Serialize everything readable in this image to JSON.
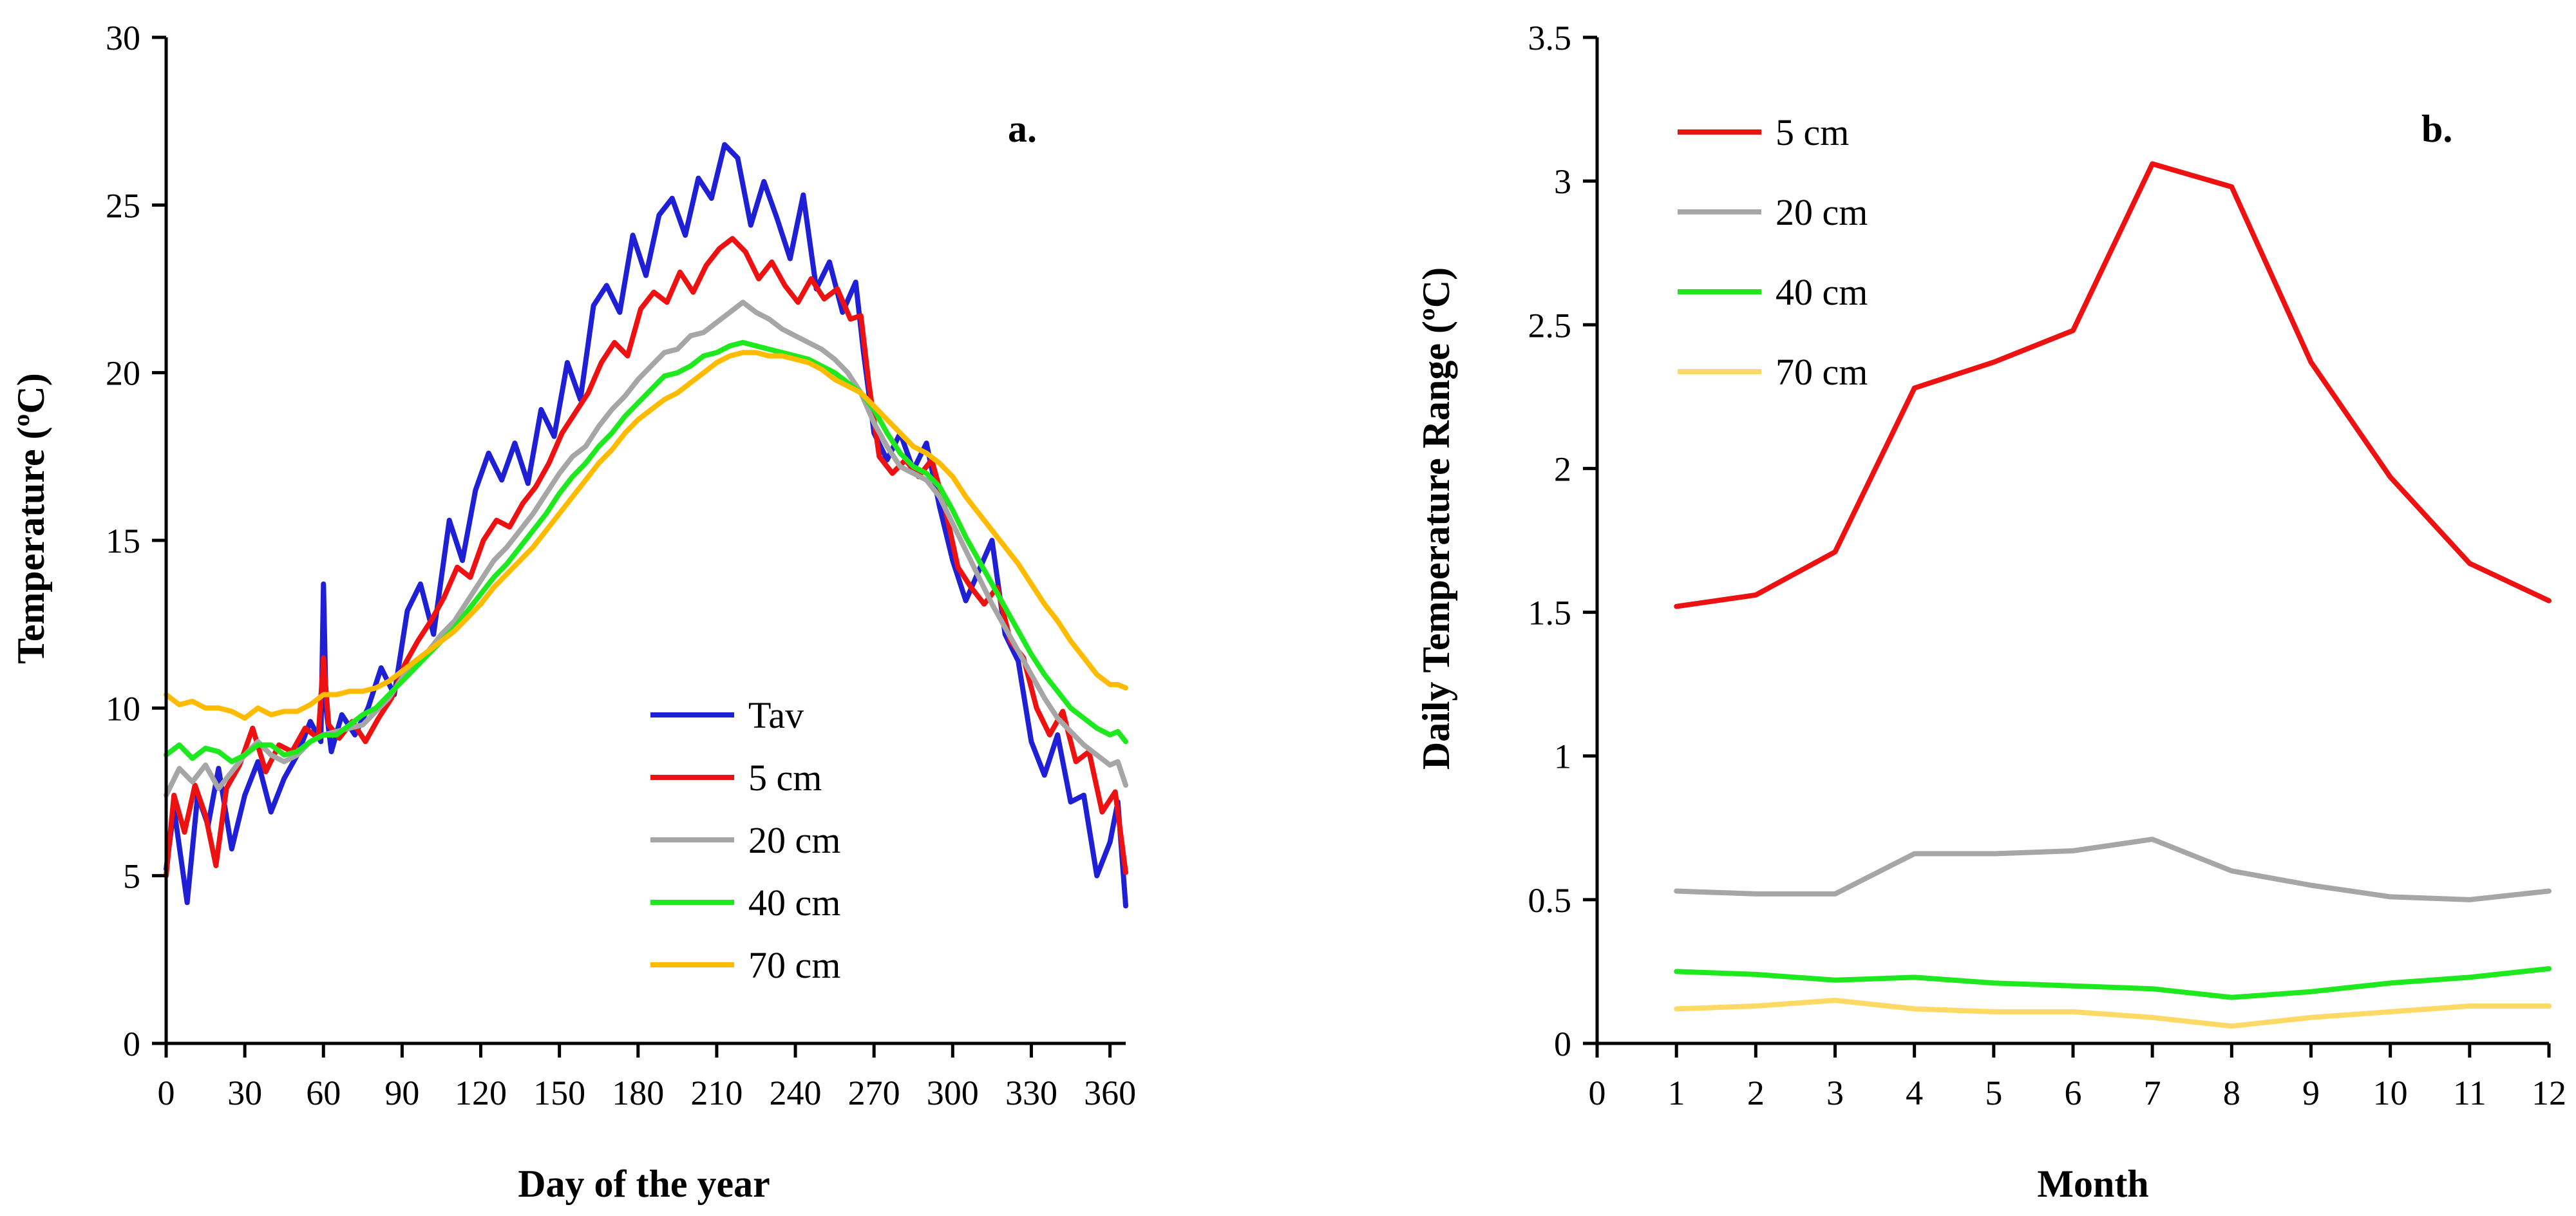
{
  "chart_data": [
    {
      "type": "line",
      "panel_label": "a.",
      "xlabel": "Day of the year",
      "ylabel": "Temperature (ºC)",
      "xlim": [
        0,
        366
      ],
      "ylim": [
        0,
        30
      ],
      "xticks": [
        0,
        30,
        60,
        90,
        120,
        150,
        180,
        210,
        240,
        270,
        300,
        330,
        360
      ],
      "yticks": [
        0,
        5,
        10,
        15,
        20,
        25,
        30
      ],
      "legend_position": "center-right",
      "series": [
        {
          "name": "Tav",
          "color": "#1f1fd6",
          "x": [
            0,
            3,
            8,
            12,
            16,
            20,
            25,
            30,
            35,
            40,
            45,
            50,
            55,
            59,
            60,
            61,
            63,
            67,
            72,
            77,
            82,
            87,
            92,
            97,
            102,
            108,
            113,
            118,
            123,
            128,
            133,
            138,
            143,
            148,
            153,
            158,
            163,
            168,
            173,
            178,
            183,
            188,
            193,
            198,
            203,
            208,
            213,
            218,
            223,
            228,
            233,
            238,
            243,
            248,
            253,
            258,
            263,
            266,
            270,
            275,
            280,
            285,
            290,
            295,
            300,
            305,
            310,
            315,
            320,
            325,
            330,
            335,
            340,
            345,
            350,
            355,
            360,
            363,
            366
          ],
          "y": [
            5.2,
            7.0,
            4.2,
            7.4,
            6.5,
            8.2,
            5.8,
            7.4,
            8.4,
            6.9,
            7.9,
            8.6,
            9.6,
            9.0,
            13.7,
            10.0,
            8.7,
            9.8,
            9.2,
            10.0,
            11.2,
            10.4,
            12.9,
            13.7,
            12.2,
            15.6,
            14.4,
            16.5,
            17.6,
            16.8,
            17.9,
            16.7,
            18.9,
            18.1,
            20.3,
            19.2,
            22.0,
            22.6,
            21.8,
            24.1,
            22.9,
            24.7,
            25.2,
            24.1,
            25.8,
            25.2,
            26.8,
            26.4,
            24.4,
            25.7,
            24.6,
            23.4,
            25.3,
            22.5,
            23.3,
            21.8,
            22.7,
            20.6,
            18.2,
            17.4,
            18.2,
            17.1,
            17.9,
            16.0,
            14.4,
            13.2,
            14.1,
            15.0,
            12.2,
            11.4,
            9.0,
            8.0,
            9.2,
            7.2,
            7.4,
            5.0,
            6.0,
            7.2,
            4.1
          ]
        },
        {
          "name": "5 cm",
          "color": "#ee1111",
          "x": [
            0,
            3,
            7,
            11,
            15,
            19,
            23,
            28,
            33,
            38,
            43,
            48,
            53,
            58,
            60,
            62,
            66,
            71,
            76,
            81,
            86,
            91,
            96,
            101,
            106,
            111,
            116,
            121,
            126,
            131,
            136,
            141,
            146,
            151,
            156,
            161,
            166,
            171,
            176,
            181,
            186,
            191,
            196,
            201,
            206,
            211,
            216,
            221,
            226,
            231,
            236,
            241,
            246,
            251,
            256,
            261,
            265,
            268,
            272,
            277,
            282,
            287,
            292,
            297,
            302,
            307,
            312,
            317,
            322,
            327,
            332,
            337,
            342,
            347,
            352,
            357,
            362,
            366
          ],
          "y": [
            5.0,
            7.4,
            6.3,
            7.7,
            6.8,
            5.3,
            7.6,
            8.3,
            9.4,
            8.1,
            8.9,
            8.7,
            9.4,
            9.1,
            11.5,
            9.5,
            9.1,
            9.6,
            9.0,
            9.7,
            10.3,
            11.3,
            12.0,
            12.6,
            13.3,
            14.2,
            13.9,
            15.0,
            15.6,
            15.4,
            16.1,
            16.6,
            17.3,
            18.2,
            18.8,
            19.4,
            20.3,
            20.9,
            20.5,
            21.9,
            22.4,
            22.1,
            23.0,
            22.4,
            23.2,
            23.7,
            24.0,
            23.6,
            22.8,
            23.3,
            22.6,
            22.1,
            22.8,
            22.2,
            22.5,
            21.6,
            21.7,
            19.7,
            17.5,
            17.0,
            17.4,
            16.9,
            17.4,
            16.0,
            14.2,
            13.6,
            13.1,
            13.6,
            12.0,
            11.5,
            10.0,
            9.2,
            9.9,
            8.4,
            8.7,
            6.9,
            7.5,
            5.1
          ]
        },
        {
          "name": "20 cm",
          "color": "#a6a6a6",
          "x": [
            0,
            5,
            10,
            15,
            20,
            25,
            30,
            35,
            40,
            45,
            50,
            55,
            60,
            65,
            70,
            75,
            80,
            85,
            90,
            95,
            100,
            105,
            110,
            115,
            120,
            125,
            130,
            135,
            140,
            145,
            150,
            155,
            160,
            165,
            170,
            175,
            180,
            185,
            190,
            195,
            200,
            205,
            210,
            215,
            220,
            225,
            230,
            235,
            240,
            245,
            250,
            255,
            260,
            265,
            270,
            275,
            280,
            285,
            290,
            295,
            300,
            305,
            310,
            315,
            320,
            325,
            330,
            335,
            340,
            345,
            350,
            355,
            360,
            363,
            366
          ],
          "y": [
            7.4,
            8.2,
            7.8,
            8.3,
            7.6,
            8.1,
            8.6,
            9.0,
            8.6,
            8.4,
            8.6,
            9.0,
            9.2,
            9.3,
            9.4,
            9.5,
            9.9,
            10.3,
            10.9,
            11.4,
            11.7,
            12.2,
            12.6,
            13.2,
            13.8,
            14.4,
            14.8,
            15.3,
            15.8,
            16.4,
            17.0,
            17.5,
            17.8,
            18.4,
            18.9,
            19.3,
            19.8,
            20.2,
            20.6,
            20.7,
            21.1,
            21.2,
            21.5,
            21.8,
            22.1,
            21.8,
            21.6,
            21.3,
            21.1,
            20.9,
            20.7,
            20.4,
            20.0,
            19.4,
            18.5,
            17.8,
            17.2,
            17.0,
            16.8,
            16.3,
            15.5,
            14.7,
            13.9,
            13.1,
            12.4,
            11.7,
            11.0,
            10.3,
            9.7,
            9.3,
            8.9,
            8.6,
            8.3,
            8.4,
            7.7
          ]
        },
        {
          "name": "40 cm",
          "color": "#1ee81e",
          "x": [
            0,
            5,
            10,
            15,
            20,
            25,
            30,
            35,
            40,
            45,
            50,
            55,
            60,
            65,
            70,
            75,
            80,
            85,
            90,
            95,
            100,
            105,
            110,
            115,
            120,
            125,
            130,
            135,
            140,
            145,
            150,
            155,
            160,
            165,
            170,
            175,
            180,
            185,
            190,
            195,
            200,
            205,
            210,
            215,
            220,
            225,
            230,
            235,
            240,
            245,
            250,
            255,
            260,
            265,
            270,
            275,
            280,
            285,
            290,
            295,
            300,
            305,
            310,
            315,
            320,
            325,
            330,
            335,
            340,
            345,
            350,
            355,
            360,
            363,
            366
          ],
          "y": [
            8.6,
            8.9,
            8.5,
            8.8,
            8.7,
            8.4,
            8.6,
            8.9,
            8.9,
            8.6,
            8.7,
            9.0,
            9.2,
            9.2,
            9.5,
            9.8,
            10.0,
            10.4,
            10.8,
            11.2,
            11.6,
            12.0,
            12.4,
            12.9,
            13.4,
            13.9,
            14.3,
            14.8,
            15.3,
            15.8,
            16.4,
            16.9,
            17.3,
            17.8,
            18.2,
            18.7,
            19.1,
            19.5,
            19.9,
            20.0,
            20.2,
            20.5,
            20.6,
            20.8,
            20.9,
            20.8,
            20.7,
            20.6,
            20.5,
            20.4,
            20.2,
            20.0,
            19.7,
            19.4,
            18.9,
            18.2,
            17.6,
            17.2,
            17.0,
            16.6,
            15.9,
            15.1,
            14.4,
            13.7,
            13.0,
            12.3,
            11.6,
            11.0,
            10.5,
            10.0,
            9.7,
            9.4,
            9.2,
            9.3,
            9.0
          ]
        },
        {
          "name": "70 cm",
          "color": "#ffbb00",
          "x": [
            0,
            5,
            10,
            15,
            20,
            25,
            30,
            35,
            40,
            45,
            50,
            55,
            60,
            65,
            70,
            75,
            80,
            85,
            90,
            95,
            100,
            105,
            110,
            115,
            120,
            125,
            130,
            135,
            140,
            145,
            150,
            155,
            160,
            165,
            170,
            175,
            180,
            185,
            190,
            195,
            200,
            205,
            210,
            215,
            220,
            225,
            230,
            235,
            240,
            245,
            250,
            255,
            260,
            265,
            270,
            275,
            280,
            285,
            290,
            295,
            300,
            305,
            310,
            315,
            320,
            325,
            330,
            335,
            340,
            345,
            350,
            355,
            360,
            363,
            366
          ],
          "y": [
            10.4,
            10.1,
            10.2,
            10.0,
            10.0,
            9.9,
            9.7,
            10.0,
            9.8,
            9.9,
            9.9,
            10.1,
            10.4,
            10.4,
            10.5,
            10.5,
            10.6,
            10.8,
            11.1,
            11.4,
            11.7,
            12.0,
            12.3,
            12.7,
            13.1,
            13.6,
            14.0,
            14.4,
            14.8,
            15.3,
            15.8,
            16.3,
            16.8,
            17.3,
            17.7,
            18.2,
            18.6,
            18.9,
            19.2,
            19.4,
            19.7,
            20.0,
            20.3,
            20.5,
            20.6,
            20.6,
            20.5,
            20.5,
            20.4,
            20.3,
            20.1,
            19.8,
            19.6,
            19.4,
            19.0,
            18.6,
            18.2,
            17.8,
            17.6,
            17.3,
            16.9,
            16.3,
            15.8,
            15.3,
            14.8,
            14.3,
            13.7,
            13.1,
            12.6,
            12.0,
            11.5,
            11.0,
            10.7,
            10.7,
            10.6
          ]
        }
      ]
    },
    {
      "type": "line",
      "panel_label": "b.",
      "xlabel": "Month",
      "ylabel": "Daily Temperature Range (ºC)",
      "xlim": [
        0,
        12
      ],
      "ylim": [
        0,
        3.5
      ],
      "xticks": [
        0,
        1,
        2,
        3,
        4,
        5,
        6,
        7,
        8,
        9,
        10,
        11,
        12
      ],
      "yticks": [
        0,
        0.5,
        1,
        1.5,
        2,
        2.5,
        3,
        3.5
      ],
      "legend_position": "top-left",
      "x": [
        1,
        2,
        3,
        4,
        5,
        6,
        7,
        8,
        9,
        10,
        11,
        12
      ],
      "series": [
        {
          "name": "5 cm",
          "color": "#ee1111",
          "values": [
            1.52,
            1.56,
            1.71,
            2.28,
            2.37,
            2.48,
            3.06,
            2.98,
            2.37,
            1.97,
            1.67,
            1.54
          ]
        },
        {
          "name": "20 cm",
          "color": "#a6a6a6",
          "values": [
            0.53,
            0.52,
            0.52,
            0.66,
            0.66,
            0.67,
            0.71,
            0.6,
            0.55,
            0.51,
            0.5,
            0.53
          ]
        },
        {
          "name": "40 cm",
          "color": "#1ee81e",
          "values": [
            0.25,
            0.24,
            0.22,
            0.23,
            0.21,
            0.2,
            0.19,
            0.16,
            0.18,
            0.21,
            0.23,
            0.26
          ]
        },
        {
          "name": "70 cm",
          "color": "#ffd966",
          "values": [
            0.12,
            0.13,
            0.15,
            0.12,
            0.11,
            0.11,
            0.09,
            0.06,
            0.09,
            0.11,
            0.13,
            0.13
          ]
        }
      ]
    }
  ]
}
